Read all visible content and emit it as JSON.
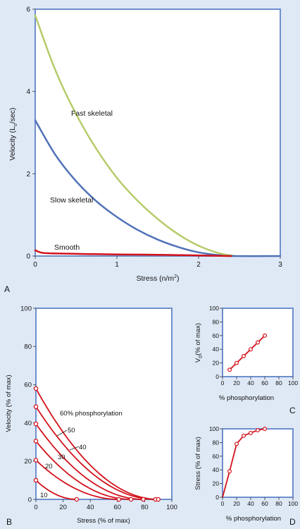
{
  "panel_labels": {
    "a": "A",
    "b": "B",
    "c": "C",
    "d": "D"
  },
  "colors": {
    "background": "#dfe9f6",
    "plot_background": "#ffffff",
    "frame": "#6e8fcd",
    "fast_skeletal": "#b5cc6a",
    "slow_skeletal": "#5071b8",
    "smooth": "#d2121b",
    "red_curves": "#d2121b",
    "marker_fill": "#ffffff"
  },
  "chart_data": [
    {
      "id": "A",
      "type": "line",
      "xlabel": "Stress (n/m",
      "xlabel_sup": "2",
      "xlabel_end": ")",
      "ylabel": "Velocity (L",
      "ylabel_sub": "o",
      "ylabel_end": "/sec)",
      "xlim": [
        0,
        3
      ],
      "ylim": [
        0,
        6
      ],
      "xticks": [
        "0",
        "1",
        "2",
        "3"
      ],
      "yticks": [
        "0",
        "2",
        "4",
        "6"
      ],
      "grid": false,
      "series": [
        {
          "name": "Fast skeletal",
          "color_key": "fast_skeletal",
          "x": [
            0,
            0.25,
            0.5,
            0.75,
            1.0,
            1.25,
            1.5,
            1.75,
            2.0,
            2.25,
            2.45
          ],
          "y": [
            5.85,
            4.5,
            3.45,
            2.6,
            1.9,
            1.35,
            0.9,
            0.53,
            0.25,
            0.07,
            0.0
          ]
        },
        {
          "name": "Slow skeletal",
          "color_key": "slow_skeletal",
          "x": [
            0,
            0.25,
            0.5,
            0.75,
            1.0,
            1.25,
            1.5,
            1.75,
            2.0,
            2.25,
            2.4,
            3.0
          ],
          "y": [
            3.3,
            2.45,
            1.82,
            1.33,
            0.95,
            0.64,
            0.4,
            0.22,
            0.09,
            0.02,
            0.0,
            0.0
          ]
        },
        {
          "name": "Smooth",
          "color_key": "smooth",
          "x": [
            0,
            0.08,
            0.2,
            0.6,
            1.0,
            1.5,
            2.0,
            2.4
          ],
          "y": [
            0.14,
            0.08,
            0.065,
            0.05,
            0.04,
            0.03,
            0.015,
            0.0
          ]
        }
      ]
    },
    {
      "id": "B",
      "type": "line",
      "xlabel": "Stress (% of max)",
      "ylabel": "Velocity (% of max)",
      "xlim": [
        0,
        100
      ],
      "ylim": [
        0,
        100
      ],
      "xticks": [
        "0",
        "20",
        "40",
        "60",
        "80",
        "100"
      ],
      "yticks": [
        "0",
        "20",
        "40",
        "60",
        "80",
        "100"
      ],
      "grid": false,
      "series": [
        {
          "name": "10",
          "x0": 30,
          "y0": 10
        },
        {
          "name": "20",
          "x0": 61,
          "y0": 20.5
        },
        {
          "name": "30",
          "x0": 70,
          "y0": 30.5
        },
        {
          "name": "40",
          "x0": 79,
          "y0": 39.5
        },
        {
          "name": "50",
          "x0": 88,
          "y0": 48.5
        },
        {
          "name": "60% phosphorylation",
          "x0": 90,
          "y0": 58
        }
      ]
    },
    {
      "id": "C",
      "type": "line",
      "xlabel": "% phosphorylation",
      "ylabel": "V",
      "ylabel_sub": "0",
      "ylabel_end": "(% of max)",
      "xlim": [
        0,
        100
      ],
      "ylim": [
        0,
        100
      ],
      "xticks": [
        "0",
        "20",
        "40",
        "60",
        "80",
        "100"
      ],
      "yticks": [
        "0",
        "20",
        "40",
        "60",
        "80",
        "100"
      ],
      "x": [
        10,
        20,
        30,
        40,
        50,
        60
      ],
      "y": [
        10,
        20,
        30,
        40,
        50,
        60
      ]
    },
    {
      "id": "D",
      "type": "line",
      "xlabel": "% phosphorylation",
      "ylabel": "Stress (% of max)",
      "xlim": [
        0,
        100
      ],
      "ylim": [
        0,
        100
      ],
      "xticks": [
        "0",
        "20",
        "40",
        "60",
        "80",
        "100"
      ],
      "yticks": [
        "0",
        "20",
        "40",
        "60",
        "80",
        "100"
      ],
      "x": [
        0,
        10,
        20,
        30,
        40,
        50,
        60
      ],
      "y": [
        0,
        38,
        78,
        90,
        94,
        98,
        100
      ]
    }
  ]
}
